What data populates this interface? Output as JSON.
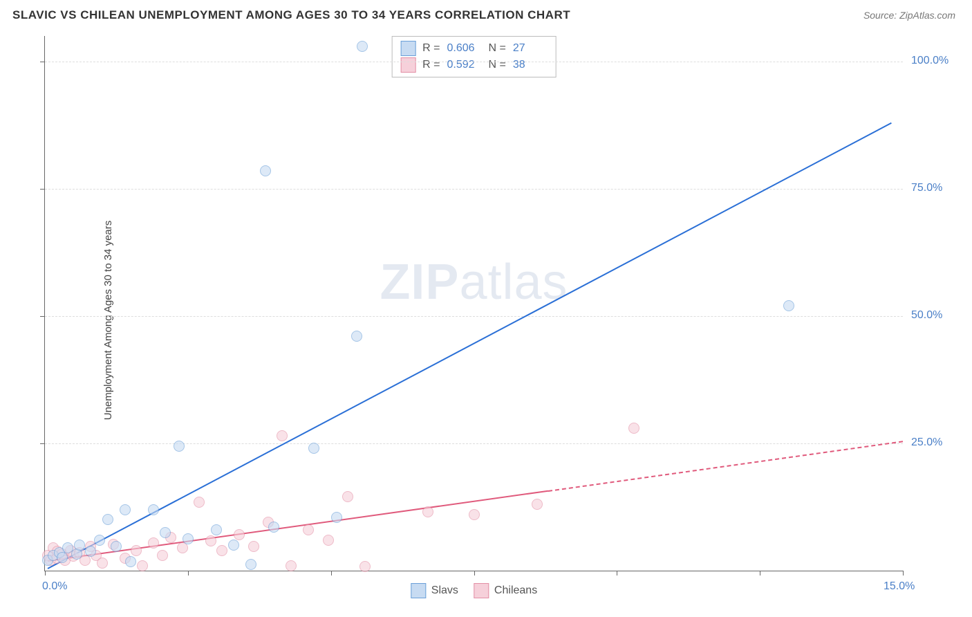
{
  "title": "SLAVIC VS CHILEAN UNEMPLOYMENT AMONG AGES 30 TO 34 YEARS CORRELATION CHART",
  "source_label": "Source: ZipAtlas.com",
  "ylabel": "Unemployment Among Ages 30 to 34 years",
  "watermark_a": "ZIP",
  "watermark_b": "atlas",
  "colors": {
    "blue_fill": "#c7dbf2",
    "blue_stroke": "#6a9fd8",
    "blue_line": "#2a6fd6",
    "pink_fill": "#f6d0da",
    "pink_stroke": "#e38fa5",
    "pink_line": "#e05a7c",
    "axis_label": "#4a7fc7",
    "grid": "#dddddd",
    "axis": "#666666",
    "text": "#333333",
    "subtext": "#777777"
  },
  "chart": {
    "type": "scatter",
    "xlim": [
      0,
      15
    ],
    "ylim": [
      0,
      105
    ],
    "y_ticks": [
      25,
      50,
      75,
      100
    ],
    "y_tick_labels": [
      "25.0%",
      "50.0%",
      "75.0%",
      "100.0%"
    ],
    "x_ticks": [
      0,
      2.5,
      5,
      7.5,
      10,
      12.5,
      15
    ],
    "x_tick_labels": [
      "0.0%",
      "",
      "",
      "",
      "",
      "",
      "15.0%"
    ],
    "marker_radius": 8,
    "marker_opacity": 0.6,
    "line_width_blue": 2.5,
    "line_width_pink": 2
  },
  "series": {
    "slavs": {
      "label": "Slavs",
      "r_value": "0.606",
      "n_value": "27",
      "trend": {
        "x1": 0.05,
        "y1": 0.5,
        "x2": 14.8,
        "y2": 88.0,
        "solid_until_x": 14.8
      },
      "points": [
        [
          0.05,
          2.0
        ],
        [
          0.15,
          3.0
        ],
        [
          0.25,
          3.5
        ],
        [
          0.3,
          2.6
        ],
        [
          0.4,
          4.5
        ],
        [
          0.55,
          3.2
        ],
        [
          0.6,
          5.0
        ],
        [
          0.8,
          3.8
        ],
        [
          0.95,
          6.0
        ],
        [
          1.1,
          10.0
        ],
        [
          1.25,
          4.8
        ],
        [
          1.4,
          12.0
        ],
        [
          1.5,
          1.8
        ],
        [
          1.9,
          12.0
        ],
        [
          2.1,
          7.5
        ],
        [
          2.35,
          24.5
        ],
        [
          2.5,
          6.2
        ],
        [
          3.0,
          8.0
        ],
        [
          3.3,
          5.0
        ],
        [
          3.6,
          1.2
        ],
        [
          3.85,
          78.5
        ],
        [
          4.0,
          8.5
        ],
        [
          4.7,
          24.0
        ],
        [
          5.1,
          10.5
        ],
        [
          5.45,
          46.0
        ],
        [
          5.55,
          103.0
        ],
        [
          13.0,
          52.0
        ]
      ]
    },
    "chileans": {
      "label": "Chileans",
      "r_value": "0.592",
      "n_value": "38",
      "trend": {
        "x1": 0.05,
        "y1": 2.0,
        "x2": 15.0,
        "y2": 25.5,
        "solid_until_x": 8.8
      },
      "points": [
        [
          0.05,
          3.0
        ],
        [
          0.1,
          2.0
        ],
        [
          0.15,
          4.5
        ],
        [
          0.2,
          2.5
        ],
        [
          0.22,
          3.8
        ],
        [
          0.3,
          3.2
        ],
        [
          0.35,
          2.0
        ],
        [
          0.45,
          4.0
        ],
        [
          0.5,
          2.8
        ],
        [
          0.6,
          3.5
        ],
        [
          0.7,
          2.0
        ],
        [
          0.8,
          4.8
        ],
        [
          0.9,
          3.0
        ],
        [
          1.0,
          1.5
        ],
        [
          1.2,
          5.2
        ],
        [
          1.4,
          2.5
        ],
        [
          1.6,
          4.0
        ],
        [
          1.7,
          1.0
        ],
        [
          1.9,
          5.5
        ],
        [
          2.05,
          3.0
        ],
        [
          2.2,
          6.5
        ],
        [
          2.4,
          4.5
        ],
        [
          2.7,
          13.5
        ],
        [
          2.9,
          5.8
        ],
        [
          3.1,
          4.0
        ],
        [
          3.4,
          7.0
        ],
        [
          3.65,
          4.8
        ],
        [
          3.9,
          9.5
        ],
        [
          4.15,
          26.5
        ],
        [
          4.3,
          1.0
        ],
        [
          4.6,
          8.0
        ],
        [
          4.95,
          6.0
        ],
        [
          5.3,
          14.5
        ],
        [
          5.6,
          0.8
        ],
        [
          6.7,
          11.5
        ],
        [
          7.5,
          11.0
        ],
        [
          8.6,
          13.0
        ],
        [
          10.3,
          28.0
        ]
      ]
    }
  },
  "stats_legend": {
    "r_label": "R =",
    "n_label": "N ="
  }
}
